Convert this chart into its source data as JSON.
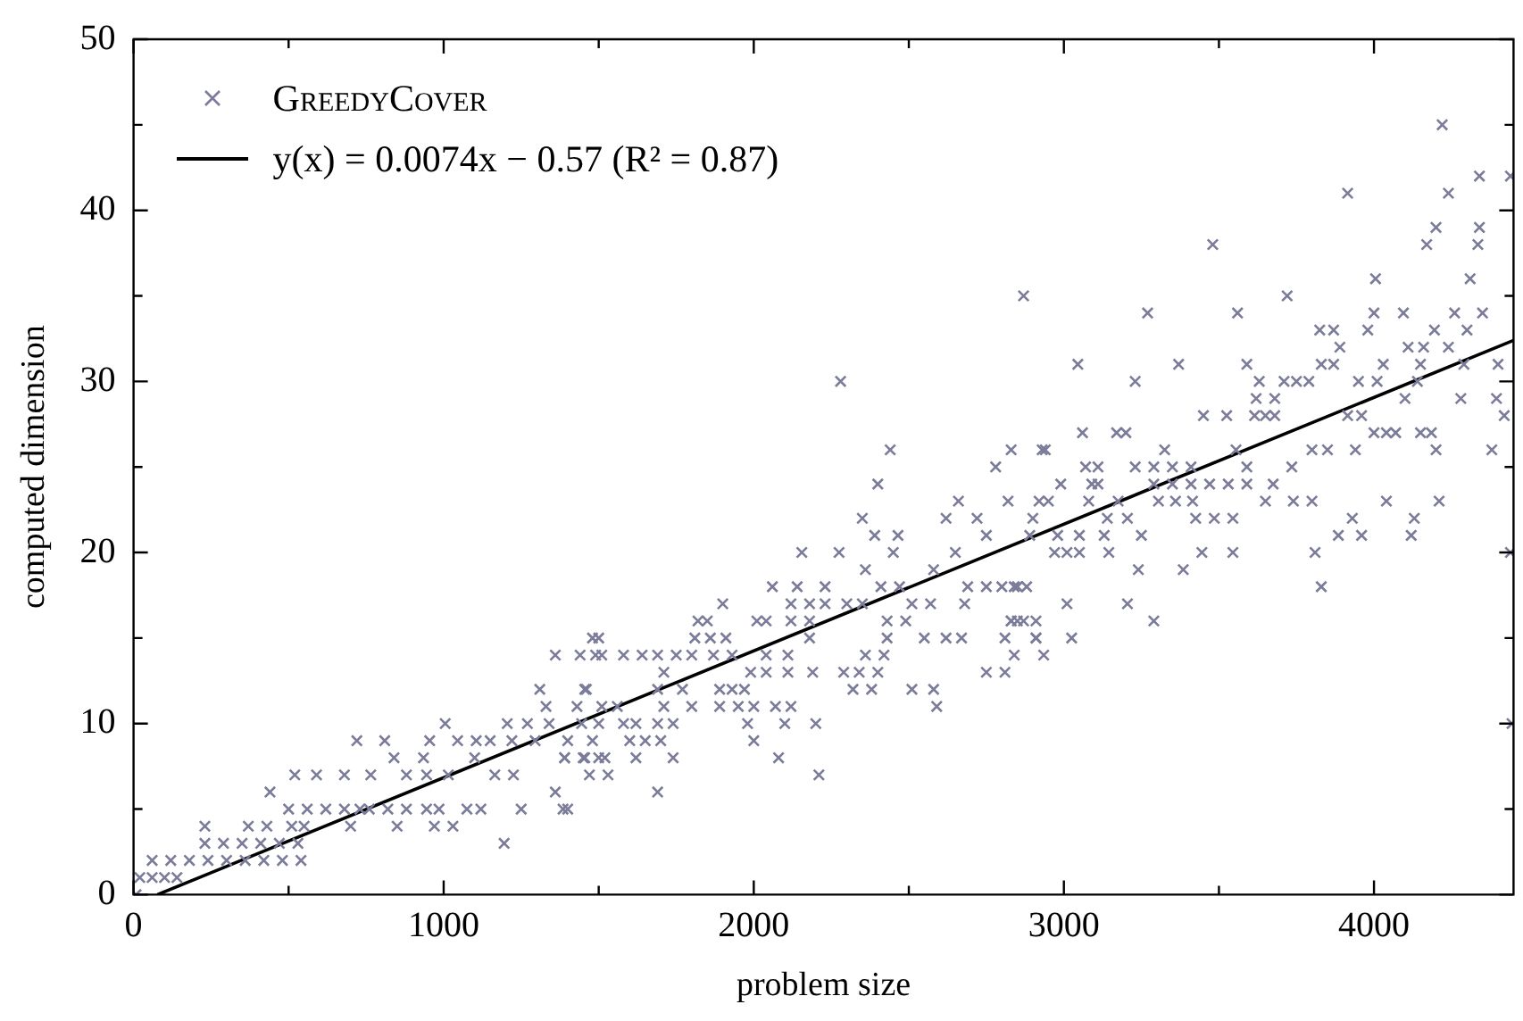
{
  "chart_data": {
    "type": "scatter",
    "xlabel": "problem size",
    "ylabel": "computed dimension",
    "xlim": [
      0,
      4450
    ],
    "ylim": [
      0,
      50
    ],
    "xticks": [
      0,
      {
        "value": 500,
        "label": null
      },
      1000,
      {
        "value": 1500,
        "label": null
      },
      2000,
      {
        "value": 2500,
        "label": null
      },
      3000,
      {
        "value": 3500,
        "label": null
      },
      4000
    ],
    "yticks": [
      0,
      {
        "value": 5,
        "label": null
      },
      10,
      {
        "value": 15,
        "label": null
      },
      20,
      {
        "value": 25,
        "label": null
      },
      30,
      {
        "value": 35,
        "label": null
      },
      40,
      {
        "value": 45,
        "label": null
      },
      50
    ],
    "grid": false,
    "legend": "top left",
    "series": [
      {
        "name": "GreedyCover",
        "type": "scatter",
        "marker": "cross",
        "color": "#7b7b9a",
        "x": [
          8,
          20,
          60,
          100,
          140,
          60,
          120,
          180,
          240,
          300,
          360,
          420,
          480,
          540,
          230,
          290,
          350,
          410,
          470,
          530,
          1195,
          230,
          370,
          430,
          510,
          550,
          700,
          850,
          970,
          1030,
          500,
          560,
          620,
          680,
          730,
          760,
          820,
          880,
          945,
          985,
          1075,
          1120,
          1250,
          1385,
          440,
          1360,
          520,
          590,
          680,
          765,
          880,
          945,
          1015,
          1165,
          1225,
          840,
          935,
          1100,
          1390,
          1455,
          1520,
          720,
          810,
          955,
          1045,
          1105,
          1150,
          1220,
          1295,
          1400,
          1480,
          1005,
          1205,
          1270,
          1340,
          1445,
          1330,
          1430,
          1310,
          1455,
          1360,
          1440,
          1490,
          1500,
          1400,
          1690,
          1470,
          1530,
          2210,
          1390,
          1450,
          1500,
          1620,
          1740,
          2080,
          1600,
          1650,
          1700,
          2000,
          1500,
          1580,
          1620,
          1690,
          1740,
          1980,
          2100,
          2200,
          1510,
          1560,
          1710,
          1800,
          1890,
          1950,
          2000,
          2070,
          2120,
          2590,
          1460,
          1690,
          1770,
          1890,
          1930,
          1970,
          2320,
          2380,
          2510,
          2580,
          1710,
          1990,
          2040,
          2110,
          2190,
          2290,
          2340,
          2400,
          2750,
          2810,
          1510,
          1580,
          1640,
          1690,
          1750,
          1800,
          1870,
          1930,
          2040,
          2110,
          2360,
          2420,
          2840,
          1480,
          1810,
          1860,
          1910,
          2180,
          2430,
          2550,
          2620,
          2670,
          2810,
          2910,
          1820,
          1850,
          2010,
          2040,
          2120,
          2180,
          2430,
          2490,
          2830,
          2850,
          1900,
          2120,
          2180,
          2230,
          2300,
          2350,
          2510,
          2570,
          2680,
          2060,
          2140,
          2230,
          2410,
          2470,
          2690,
          2750,
          2800,
          2850,
          2360,
          2580,
          2155,
          2275,
          2450,
          2650,
          2390,
          2465,
          2750,
          2350,
          2620,
          2720,
          2900,
          2660,
          2820,
          2920,
          2400,
          2780,
          2440,
          2830,
          2930,
          2280,
          4220,
          4340,
          4440,
          3915,
          4240,
          4200,
          4340,
          3480,
          4170,
          4335,
          4005,
          4310,
          2870,
          3720,
          3270,
          3560,
          4000,
          4095,
          4260,
          4350,
          3825,
          3870,
          3980,
          4195,
          4300,
          3890,
          4110,
          4160,
          4240,
          3045,
          3370,
          3590,
          3830,
          3870,
          4030,
          4150,
          4290,
          4400,
          3230,
          3630,
          3710,
          3750,
          3790,
          3950,
          4010,
          4140,
          3620,
          3680,
          4100,
          4280,
          4395,
          3450,
          3525,
          3615,
          3650,
          3680,
          3915,
          3960,
          4420,
          3060,
          3170,
          3200,
          4000,
          4040,
          4070,
          4150,
          4185,
          2940,
          3325,
          3555,
          3800,
          3850,
          3940,
          4200,
          4380,
          3070,
          3110,
          3230,
          3290,
          3350,
          3410,
          3590,
          3735,
          2990,
          3090,
          3110,
          3290,
          3350,
          3410,
          3470,
          3530,
          3590,
          3675,
          2950,
          3080,
          3175,
          3305,
          3360,
          3415,
          3650,
          3740,
          3800,
          4040,
          4210,
          3140,
          3205,
          3425,
          3485,
          3545,
          3930,
          4130,
          2890,
          2980,
          3050,
          3130,
          3250,
          3885,
          3960,
          4120,
          2970,
          3010,
          3050,
          3145,
          3445,
          3545,
          3810,
          4440,
          3240,
          3385,
          2840,
          2880,
          3830,
          3010,
          3205,
          2830,
          2870,
          2910,
          3290,
          2910,
          3025,
          2935,
          4445
        ],
        "values": [
          0,
          1,
          1,
          1,
          1,
          2,
          2,
          2,
          2,
          2,
          2,
          2,
          2,
          2,
          3,
          3,
          3,
          3,
          3,
          3,
          3,
          4,
          4,
          4,
          4,
          4,
          4,
          4,
          4,
          4,
          5,
          5,
          5,
          5,
          5,
          5,
          5,
          5,
          5,
          5,
          5,
          5,
          5,
          5,
          6,
          6,
          7,
          7,
          7,
          7,
          7,
          7,
          7,
          7,
          7,
          8,
          8,
          8,
          8,
          8,
          8,
          9,
          9,
          9,
          9,
          9,
          9,
          9,
          9,
          9,
          9,
          10,
          10,
          10,
          10,
          10,
          11,
          11,
          12,
          12,
          14,
          14,
          14,
          15,
          5,
          6,
          7,
          7,
          7,
          8,
          8,
          8,
          8,
          8,
          8,
          9,
          9,
          9,
          9,
          10,
          10,
          10,
          10,
          10,
          10,
          10,
          10,
          11,
          11,
          11,
          11,
          11,
          11,
          11,
          11,
          11,
          11,
          12,
          12,
          12,
          12,
          12,
          12,
          12,
          12,
          12,
          12,
          13,
          13,
          13,
          13,
          13,
          13,
          13,
          13,
          13,
          13,
          14,
          14,
          14,
          14,
          14,
          14,
          14,
          14,
          14,
          14,
          14,
          14,
          14,
          15,
          15,
          15,
          15,
          15,
          15,
          15,
          15,
          15,
          15,
          15,
          16,
          16,
          16,
          16,
          16,
          16,
          16,
          16,
          16,
          16,
          17,
          17,
          17,
          17,
          17,
          17,
          17,
          17,
          17,
          18,
          18,
          18,
          18,
          18,
          18,
          18,
          18,
          18,
          19,
          19,
          20,
          20,
          20,
          20,
          21,
          21,
          21,
          22,
          22,
          22,
          22,
          23,
          23,
          23,
          24,
          25,
          26,
          26,
          26,
          30,
          45,
          42,
          42,
          41,
          41,
          39,
          39,
          38,
          38,
          38,
          36,
          36,
          35,
          35,
          34,
          34,
          34,
          34,
          34,
          34,
          33,
          33,
          33,
          33,
          33,
          32,
          32,
          32,
          32,
          31,
          31,
          31,
          31,
          31,
          31,
          31,
          31,
          31,
          30,
          30,
          30,
          30,
          30,
          30,
          30,
          30,
          29,
          29,
          29,
          29,
          29,
          28,
          28,
          28,
          28,
          28,
          28,
          28,
          28,
          27,
          27,
          27,
          27,
          27,
          27,
          27,
          27,
          26,
          26,
          26,
          26,
          26,
          26,
          26,
          26,
          25,
          25,
          25,
          25,
          25,
          25,
          25,
          25,
          24,
          24,
          24,
          24,
          24,
          24,
          24,
          24,
          24,
          24,
          23,
          23,
          23,
          23,
          23,
          23,
          23,
          23,
          23,
          23,
          23,
          22,
          22,
          22,
          22,
          22,
          22,
          22,
          21,
          21,
          21,
          21,
          21,
          21,
          21,
          21,
          20,
          20,
          20,
          20,
          20,
          20,
          20,
          20,
          19,
          19,
          18,
          18,
          18,
          17,
          17,
          16,
          16,
          16,
          16,
          15,
          15,
          14,
          10
        ]
      },
      {
        "name": "y(x) = 0.0074x − 0.57 (R² = 0.87)",
        "type": "line",
        "marker": "none",
        "line_style": "solid",
        "color": "#000000",
        "x": [
          77,
          4450
        ],
        "values": [
          0,
          32.4
        ]
      }
    ]
  }
}
